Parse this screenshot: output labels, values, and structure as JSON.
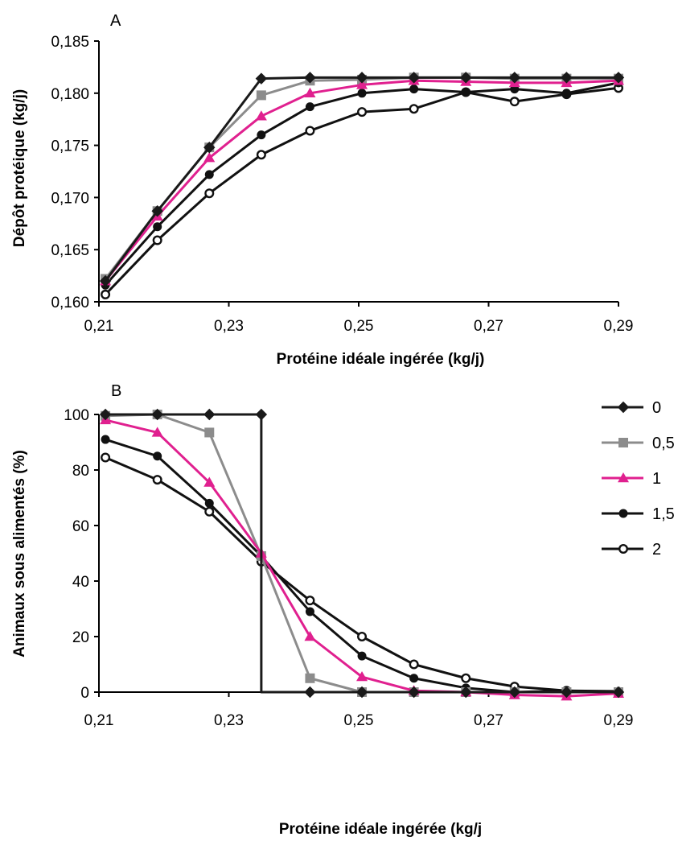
{
  "chart_data": [
    {
      "type": "line",
      "panel_label": "A",
      "title": "",
      "xlabel": "Protéine idéale ingérée (kg/j)",
      "ylabel": "Dépôt protéique (kg/j)",
      "xlim": [
        0.21,
        0.29
      ],
      "ylim": [
        0.16,
        0.185
      ],
      "x_ticks": [
        "0,21",
        "0,23",
        "0,25",
        "0,27",
        "0,29"
      ],
      "y_ticks": [
        "0,160",
        "0,165",
        "0,170",
        "0,175",
        "0,180",
        "0,185"
      ],
      "x": [
        0.211,
        0.219,
        0.227,
        0.235,
        0.2425,
        0.2505,
        0.2585,
        0.2665,
        0.274,
        0.282,
        0.29
      ],
      "series": [
        {
          "name": "0",
          "color": "#1a1a1a",
          "marker": "diamond",
          "values": [
            0.162,
            0.1687,
            0.1748,
            0.1814,
            0.1815,
            0.1815,
            0.1815,
            0.1815,
            0.1815,
            0.1815,
            0.1815
          ]
        },
        {
          "name": "0,5",
          "color": "#8c8c8c",
          "marker": "square",
          "values": [
            0.1622,
            0.1687,
            0.1748,
            0.1798,
            0.1812,
            0.1813,
            0.1815,
            0.1815,
            0.1814,
            0.1814,
            0.1814
          ]
        },
        {
          "name": "1",
          "color": "#e0208f",
          "marker": "triangle",
          "values": [
            0.162,
            0.1682,
            0.1738,
            0.1778,
            0.18,
            0.1808,
            0.1812,
            0.1811,
            0.181,
            0.181,
            0.1812
          ]
        },
        {
          "name": "1,5",
          "color": "#111111",
          "marker": "circle",
          "values": [
            0.1616,
            0.1672,
            0.1722,
            0.176,
            0.1787,
            0.18,
            0.1804,
            0.1801,
            0.1804,
            0.18,
            0.181
          ]
        },
        {
          "name": "2",
          "color": "#111111",
          "marker": "open-circle",
          "values": [
            0.1607,
            0.1659,
            0.1704,
            0.1741,
            0.1764,
            0.1782,
            0.1785,
            0.1801,
            0.1792,
            0.1799,
            0.1805
          ]
        }
      ]
    },
    {
      "type": "line",
      "panel_label": "B",
      "title": "",
      "xlabel": "Protéine idéale ingérée (kg/j",
      "ylabel": "Animaux sous alimentés (%)",
      "xlim": [
        0.21,
        0.29
      ],
      "ylim": [
        0,
        100
      ],
      "x_ticks": [
        "0,21",
        "0,23",
        "0,25",
        "0,27",
        "0,29"
      ],
      "y_ticks": [
        "0",
        "20",
        "40",
        "60",
        "80",
        "100"
      ],
      "x": [
        0.211,
        0.219,
        0.227,
        0.235,
        0.2425,
        0.2505,
        0.2585,
        0.2665,
        0.274,
        0.282,
        0.29
      ],
      "legend": "right",
      "series": [
        {
          "name": "0",
          "color": "#1a1a1a",
          "marker": "diamond",
          "values": [
            100,
            100,
            100,
            100,
            0,
            0,
            0,
            0,
            0,
            0,
            0
          ],
          "step_drop": true
        },
        {
          "name": "0,5",
          "color": "#8c8c8c",
          "marker": "square",
          "values": [
            99.5,
            100,
            93.5,
            49,
            5,
            0,
            0,
            0,
            0,
            0,
            0
          ]
        },
        {
          "name": "1",
          "color": "#e0208f",
          "marker": "triangle",
          "values": [
            98,
            93.5,
            75.5,
            50,
            20,
            5.5,
            0.5,
            0,
            -1,
            -1.5,
            -0.5
          ]
        },
        {
          "name": "1,5",
          "color": "#111111",
          "marker": "circle",
          "values": [
            91,
            85,
            68,
            49,
            29,
            13,
            5,
            1.5,
            0,
            0.5,
            0.3
          ]
        },
        {
          "name": "2",
          "color": "#111111",
          "marker": "open-circle",
          "values": [
            84.5,
            76.5,
            65,
            47,
            33,
            20,
            10,
            5,
            2,
            0.5,
            0
          ]
        }
      ]
    }
  ]
}
